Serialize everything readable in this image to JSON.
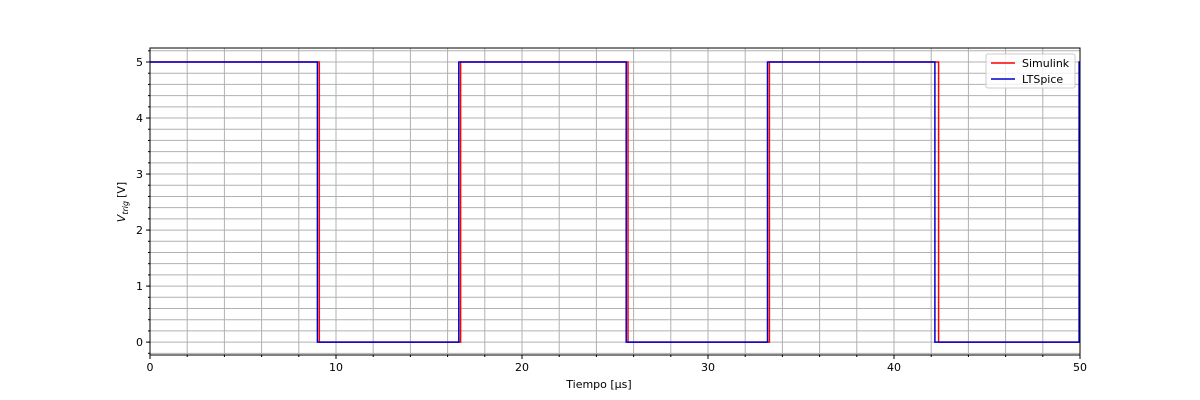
{
  "chart_data": {
    "type": "line",
    "xlabel": "Tiempo [μs]",
    "ylabel": "V_trig [V]",
    "ylabel_base": "V",
    "ylabel_sub": "trig",
    "ylabel_unit": "[V]",
    "xlim": [
      0,
      50
    ],
    "ylim": [
      -0.23,
      5.25
    ],
    "xticks": [
      0,
      10,
      20,
      30,
      40,
      50
    ],
    "xtick_labels": [
      "0",
      "10",
      "20",
      "30",
      "40",
      "50"
    ],
    "yticks": [
      0,
      1,
      2,
      3,
      4,
      5
    ],
    "ytick_labels": [
      "0",
      "1",
      "2",
      "3",
      "4",
      "5"
    ],
    "grid": "major and minor",
    "legend_position": "top-right",
    "series": [
      {
        "name": "Simulink",
        "color": "#ff0000",
        "x": [
          0,
          9.1,
          9.1,
          16.7,
          16.7,
          25.7,
          25.7,
          33.3,
          33.3,
          42.4,
          42.4,
          50
        ],
        "y": [
          5,
          5,
          0,
          0,
          5,
          5,
          0,
          0,
          5,
          5,
          0,
          0
        ]
      },
      {
        "name": "LTSpice",
        "color": "#0000cc",
        "x": [
          0,
          9.0,
          9.0,
          16.6,
          16.6,
          25.6,
          25.6,
          33.2,
          33.2,
          42.2,
          42.2,
          49.95,
          49.95,
          50
        ],
        "y": [
          5,
          5,
          0,
          0,
          5,
          5,
          0,
          0,
          5,
          5,
          0,
          0,
          5,
          5
        ]
      }
    ]
  }
}
